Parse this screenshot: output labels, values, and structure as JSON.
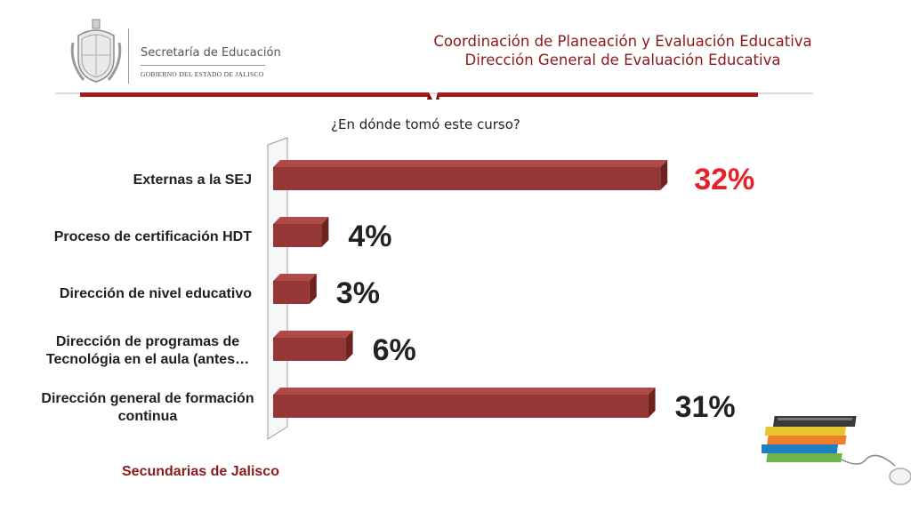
{
  "header": {
    "logo_name": "Secretaría de Educación",
    "logo_subtitle": "GOBIERNO DEL ESTADO DE JALISCO",
    "title_line1": "Coordinación de Planeación y Evaluación Educativa",
    "title_line2": "Dirección General de Evaluación Educativa",
    "title_color": "#8b1a1a"
  },
  "icons": {
    "seal": "state-seal-icon",
    "books": "books-and-mouse-icon"
  },
  "chart_data": {
    "type": "bar",
    "orientation": "horizontal",
    "title": "¿En dónde tomó este curso?",
    "categories": [
      [
        "Externas a la SEJ"
      ],
      [
        "Proceso de certificación HDT"
      ],
      [
        "Dirección de nivel educativo"
      ],
      [
        "Dirección de programas de",
        "Tecnológia en el aula (antes…"
      ],
      [
        "Dirección general de formación",
        "continua"
      ]
    ],
    "values": [
      32,
      4,
      3,
      6,
      31
    ],
    "data_labels": [
      "32%",
      "4%",
      "3%",
      "6%",
      "31%"
    ],
    "highlight_index": 0,
    "unit": "%",
    "bar_color": "#953735",
    "highlight_label_color": "#e8202a",
    "label_color": "#222222",
    "grid": false,
    "legend": "none",
    "style": "3d"
  },
  "footer": {
    "label": "Secundarias de Jalisco"
  }
}
